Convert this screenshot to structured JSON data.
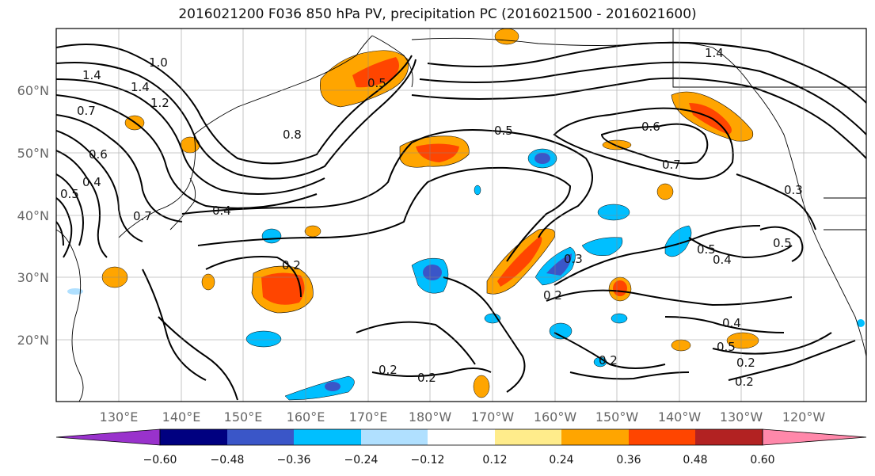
{
  "title": "2016021200 F036 850 hPa PV, precipitation PC (2016021500 - 2016021600)",
  "map": {
    "lat_labels": [
      "60°N",
      "50°N",
      "40°N",
      "30°N",
      "20°N"
    ],
    "lon_labels": [
      "130°E",
      "140°E",
      "150°E",
      "160°E",
      "170°E",
      "180°W",
      "170°W",
      "160°W",
      "150°W",
      "140°W",
      "130°W",
      "120°W"
    ],
    "contour_labels": [
      "1.4",
      "1.0",
      "1.4",
      "1.2",
      "0.7",
      "0.6",
      "0.4",
      "0.5",
      "0.8",
      "0.7",
      "0.4",
      "0.2",
      "0.5",
      "1.4",
      "0.5",
      "0.6",
      "0.7",
      "0.3",
      "0.5",
      "0.4",
      "0.5",
      "0.3",
      "0.2",
      "0.2",
      "0.2",
      "0.4",
      "0.5",
      "0.2",
      "0.2",
      "0.2"
    ]
  },
  "colorbar": {
    "ticks": [
      "−0.60",
      "−0.48",
      "−0.36",
      "−0.24",
      "−0.12",
      "0.12",
      "0.24",
      "0.36",
      "0.48",
      "0.60"
    ],
    "colors": [
      "#9932cc",
      "#000080",
      "#3a56c8",
      "#00bfff",
      "#b0e0ff",
      "#ffffff",
      "#ffec8b",
      "#ffa500",
      "#ff4500",
      "#b22222",
      "#ff88aa"
    ]
  }
}
